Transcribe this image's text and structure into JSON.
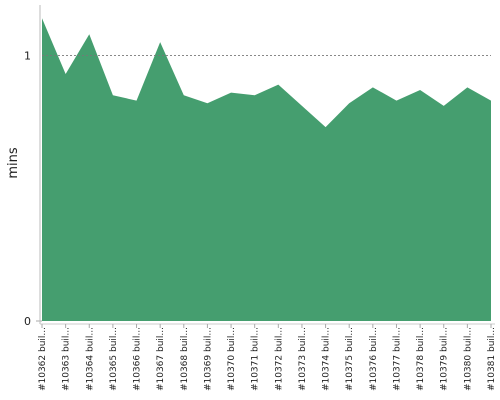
{
  "chart_data": {
    "type": "area",
    "y_label": "mins",
    "categories": [
      "#10362 buil...",
      "#10363 buil...",
      "#10364 buil...",
      "#10365 buil...",
      "#10366 buil...",
      "#10367 buil...",
      "#10368 buil...",
      "#10369 buil...",
      "#10370 buil...",
      "#10371 buil...",
      "#10372 buil...",
      "#10373 buil...",
      "#10374 buil...",
      "#10375 buil...",
      "#10376 buil...",
      "#10377 buil...",
      "#10378 buil...",
      "#10379 buil...",
      "#10380 buil...",
      "#10381 buil..."
    ],
    "values": [
      1.14,
      0.93,
      1.08,
      0.85,
      0.83,
      1.05,
      0.85,
      0.82,
      0.86,
      0.85,
      0.89,
      0.81,
      0.73,
      0.82,
      0.88,
      0.83,
      0.87,
      0.81,
      0.88,
      0.83
    ],
    "color": "#459e6f",
    "ylim": [
      0,
      1.19
    ],
    "yticks": [
      0,
      1
    ],
    "grid": true
  }
}
